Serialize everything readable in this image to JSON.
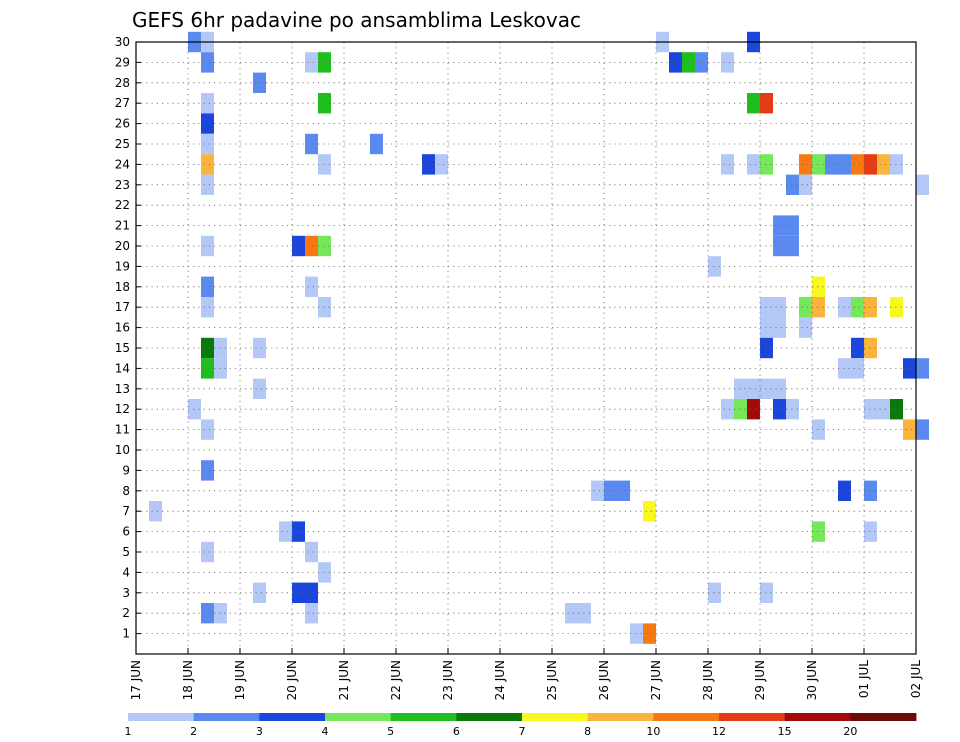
{
  "chart_data": {
    "type": "heatmap",
    "title": "GEFS 6hr padavine po ansamblima Leskovac",
    "xlabel": "",
    "ylabel": "",
    "x_tick_labels": [
      "17 JUN",
      "18 JUN",
      "19 JUN",
      "20 JUN",
      "21 JUN",
      "22 JUN",
      "23 JUN",
      "24 JUN",
      "25 JUN",
      "26 JUN",
      "27 JUN",
      "28 JUN",
      "29 JUN",
      "30 JUN",
      "01 JUL",
      "02 JUL"
    ],
    "y_tick_labels": [
      "1",
      "2",
      "3",
      "4",
      "5",
      "6",
      "7",
      "8",
      "9",
      "10",
      "11",
      "12",
      "13",
      "14",
      "15",
      "16",
      "17",
      "18",
      "19",
      "20",
      "21",
      "22",
      "23",
      "24",
      "25",
      "26",
      "27",
      "28",
      "29",
      "30"
    ],
    "y_range": [
      0,
      30
    ],
    "x_range_days": [
      0,
      15
    ],
    "grid": true,
    "steps_per_day": 4,
    "colorbar": {
      "placement": "bottom",
      "levels": [
        "1",
        "2",
        "3",
        "4",
        "5",
        "6",
        "7",
        "8",
        "10",
        "12",
        "15",
        "20"
      ],
      "colors": [
        "#b4c8f8",
        "#5a8af0",
        "#1a46dc",
        "#76e65a",
        "#1ebe1e",
        "#0a780a",
        "#f8f81e",
        "#fab43c",
        "#f87814",
        "#e63c14",
        "#a00a0a",
        "#6e0a0a"
      ]
    },
    "cells": [
      {
        "member": 30,
        "step": 4,
        "color": "#5a8af0"
      },
      {
        "member": 30,
        "step": 5,
        "color": "#b4c8f8"
      },
      {
        "member": 30,
        "step": 40,
        "color": "#b4c8f8"
      },
      {
        "member": 30,
        "step": 47,
        "color": "#1a46dc"
      },
      {
        "member": 29,
        "step": 5,
        "color": "#5a8af0"
      },
      {
        "member": 29,
        "step": 13,
        "color": "#b4c8f8"
      },
      {
        "member": 29,
        "step": 14,
        "color": "#1ebe1e"
      },
      {
        "member": 29,
        "step": 41,
        "color": "#1a46dc"
      },
      {
        "member": 29,
        "step": 42,
        "color": "#1ebe1e"
      },
      {
        "member": 29,
        "step": 43,
        "color": "#5a8af0"
      },
      {
        "member": 29,
        "step": 45,
        "color": "#b4c8f8"
      },
      {
        "member": 28,
        "step": 9,
        "color": "#5a8af0"
      },
      {
        "member": 27,
        "step": 5,
        "color": "#b4c8f8"
      },
      {
        "member": 27,
        "step": 14,
        "color": "#1ebe1e"
      },
      {
        "member": 27,
        "step": 47,
        "color": "#1ebe1e"
      },
      {
        "member": 27,
        "step": 48,
        "color": "#e63c14"
      },
      {
        "member": 26,
        "step": 5,
        "color": "#1a46dc"
      },
      {
        "member": 25,
        "step": 5,
        "color": "#b4c8f8"
      },
      {
        "member": 25,
        "step": 13,
        "color": "#5a8af0"
      },
      {
        "member": 25,
        "step": 18,
        "color": "#5a8af0"
      },
      {
        "member": 24,
        "step": 5,
        "color": "#fab43c"
      },
      {
        "member": 24,
        "step": 14,
        "color": "#b4c8f8"
      },
      {
        "member": 24,
        "step": 22,
        "color": "#1a46dc"
      },
      {
        "member": 24,
        "step": 23,
        "color": "#b4c8f8"
      },
      {
        "member": 24,
        "step": 45,
        "color": "#b4c8f8"
      },
      {
        "member": 24,
        "step": 47,
        "color": "#b4c8f8"
      },
      {
        "member": 24,
        "step": 48,
        "color": "#76e65a"
      },
      {
        "member": 24,
        "step": 51,
        "color": "#f87814"
      },
      {
        "member": 24,
        "step": 52,
        "color": "#76e65a"
      },
      {
        "member": 24,
        "step": 53,
        "color": "#5a8af0"
      },
      {
        "member": 24,
        "step": 54,
        "color": "#5a8af0"
      },
      {
        "member": 24,
        "step": 55,
        "color": "#f87814"
      },
      {
        "member": 24,
        "step": 56,
        "color": "#e63c14"
      },
      {
        "member": 24,
        "step": 57,
        "color": "#fab43c"
      },
      {
        "member": 24,
        "step": 58,
        "color": "#b4c8f8"
      },
      {
        "member": 23,
        "step": 5,
        "color": "#b4c8f8"
      },
      {
        "member": 23,
        "step": 50,
        "color": "#5a8af0"
      },
      {
        "member": 23,
        "step": 51,
        "color": "#b4c8f8"
      },
      {
        "member": 23,
        "step": 60,
        "color": "#b4c8f8"
      },
      {
        "member": 21,
        "step": 49,
        "color": "#5a8af0"
      },
      {
        "member": 21,
        "step": 50,
        "color": "#5a8af0"
      },
      {
        "member": 20,
        "step": 5,
        "color": "#b4c8f8"
      },
      {
        "member": 20,
        "step": 12,
        "color": "#1a46dc"
      },
      {
        "member": 20,
        "step": 13,
        "color": "#f87814"
      },
      {
        "member": 20,
        "step": 14,
        "color": "#76e65a"
      },
      {
        "member": 20,
        "step": 49,
        "color": "#5a8af0"
      },
      {
        "member": 20,
        "step": 50,
        "color": "#5a8af0"
      },
      {
        "member": 19,
        "step": 44,
        "color": "#b4c8f8"
      },
      {
        "member": 18,
        "step": 5,
        "color": "#5a8af0"
      },
      {
        "member": 18,
        "step": 13,
        "color": "#b4c8f8"
      },
      {
        "member": 18,
        "step": 52,
        "color": "#f8f81e"
      },
      {
        "member": 17,
        "step": 5,
        "color": "#b4c8f8"
      },
      {
        "member": 17,
        "step": 14,
        "color": "#b4c8f8"
      },
      {
        "member": 17,
        "step": 48,
        "color": "#b4c8f8"
      },
      {
        "member": 17,
        "step": 49,
        "color": "#b4c8f8"
      },
      {
        "member": 17,
        "step": 51,
        "color": "#76e65a"
      },
      {
        "member": 17,
        "step": 52,
        "color": "#fab43c"
      },
      {
        "member": 17,
        "step": 54,
        "color": "#b4c8f8"
      },
      {
        "member": 17,
        "step": 55,
        "color": "#76e65a"
      },
      {
        "member": 17,
        "step": 56,
        "color": "#fab43c"
      },
      {
        "member": 17,
        "step": 58,
        "color": "#f8f81e"
      },
      {
        "member": 16,
        "step": 48,
        "color": "#b4c8f8"
      },
      {
        "member": 16,
        "step": 49,
        "color": "#b4c8f8"
      },
      {
        "member": 16,
        "step": 51,
        "color": "#b4c8f8"
      },
      {
        "member": 15,
        "step": 5,
        "color": "#0a780a"
      },
      {
        "member": 15,
        "step": 6,
        "color": "#b4c8f8"
      },
      {
        "member": 15,
        "step": 9,
        "color": "#b4c8f8"
      },
      {
        "member": 15,
        "step": 48,
        "color": "#1a46dc"
      },
      {
        "member": 15,
        "step": 55,
        "color": "#1a46dc"
      },
      {
        "member": 15,
        "step": 56,
        "color": "#fab43c"
      },
      {
        "member": 14,
        "step": 5,
        "color": "#1ebe1e"
      },
      {
        "member": 14,
        "step": 6,
        "color": "#b4c8f8"
      },
      {
        "member": 14,
        "step": 54,
        "color": "#b4c8f8"
      },
      {
        "member": 14,
        "step": 55,
        "color": "#b4c8f8"
      },
      {
        "member": 14,
        "step": 59,
        "color": "#1a46dc"
      },
      {
        "member": 14,
        "step": 60,
        "color": "#5a8af0"
      },
      {
        "member": 13,
        "step": 9,
        "color": "#b4c8f8"
      },
      {
        "member": 13,
        "step": 46,
        "color": "#b4c8f8"
      },
      {
        "member": 13,
        "step": 47,
        "color": "#b4c8f8"
      },
      {
        "member": 13,
        "step": 48,
        "color": "#b4c8f8"
      },
      {
        "member": 13,
        "step": 49,
        "color": "#b4c8f8"
      },
      {
        "member": 12,
        "step": 4,
        "color": "#b4c8f8"
      },
      {
        "member": 12,
        "step": 45,
        "color": "#b4c8f8"
      },
      {
        "member": 12,
        "step": 46,
        "color": "#76e65a"
      },
      {
        "member": 12,
        "step": 47,
        "color": "#a00a0a"
      },
      {
        "member": 12,
        "step": 49,
        "color": "#1a46dc"
      },
      {
        "member": 12,
        "step": 50,
        "color": "#b4c8f8"
      },
      {
        "member": 12,
        "step": 56,
        "color": "#b4c8f8"
      },
      {
        "member": 12,
        "step": 57,
        "color": "#b4c8f8"
      },
      {
        "member": 12,
        "step": 58,
        "color": "#0a780a"
      },
      {
        "member": 11,
        "step": 5,
        "color": "#b4c8f8"
      },
      {
        "member": 11,
        "step": 52,
        "color": "#b4c8f8"
      },
      {
        "member": 11,
        "step": 59,
        "color": "#fab43c"
      },
      {
        "member": 11,
        "step": 60,
        "color": "#5a8af0"
      },
      {
        "member": 9,
        "step": 5,
        "color": "#5a8af0"
      },
      {
        "member": 8,
        "step": 35,
        "color": "#b4c8f8"
      },
      {
        "member": 8,
        "step": 36,
        "color": "#5a8af0"
      },
      {
        "member": 8,
        "step": 37,
        "color": "#5a8af0"
      },
      {
        "member": 8,
        "step": 54,
        "color": "#1a46dc"
      },
      {
        "member": 8,
        "step": 56,
        "color": "#5a8af0"
      },
      {
        "member": 7,
        "step": 1,
        "color": "#b4c8f8"
      },
      {
        "member": 7,
        "step": 39,
        "color": "#f8f81e"
      },
      {
        "member": 6,
        "step": 11,
        "color": "#b4c8f8"
      },
      {
        "member": 6,
        "step": 12,
        "color": "#1a46dc"
      },
      {
        "member": 6,
        "step": 52,
        "color": "#76e65a"
      },
      {
        "member": 6,
        "step": 56,
        "color": "#b4c8f8"
      },
      {
        "member": 5,
        "step": 5,
        "color": "#b4c8f8"
      },
      {
        "member": 5,
        "step": 13,
        "color": "#b4c8f8"
      },
      {
        "member": 4,
        "step": 14,
        "color": "#b4c8f8"
      },
      {
        "member": 3,
        "step": 9,
        "color": "#b4c8f8"
      },
      {
        "member": 3,
        "step": 12,
        "color": "#1a46dc"
      },
      {
        "member": 3,
        "step": 13,
        "color": "#1a46dc"
      },
      {
        "member": 3,
        "step": 44,
        "color": "#b4c8f8"
      },
      {
        "member": 3,
        "step": 48,
        "color": "#b4c8f8"
      },
      {
        "member": 2,
        "step": 5,
        "color": "#5a8af0"
      },
      {
        "member": 2,
        "step": 6,
        "color": "#b4c8f8"
      },
      {
        "member": 2,
        "step": 13,
        "color": "#b4c8f8"
      },
      {
        "member": 2,
        "step": 33,
        "color": "#b4c8f8"
      },
      {
        "member": 2,
        "step": 34,
        "color": "#b4c8f8"
      },
      {
        "member": 1,
        "step": 38,
        "color": "#b4c8f8"
      },
      {
        "member": 1,
        "step": 39,
        "color": "#f87814"
      }
    ]
  }
}
